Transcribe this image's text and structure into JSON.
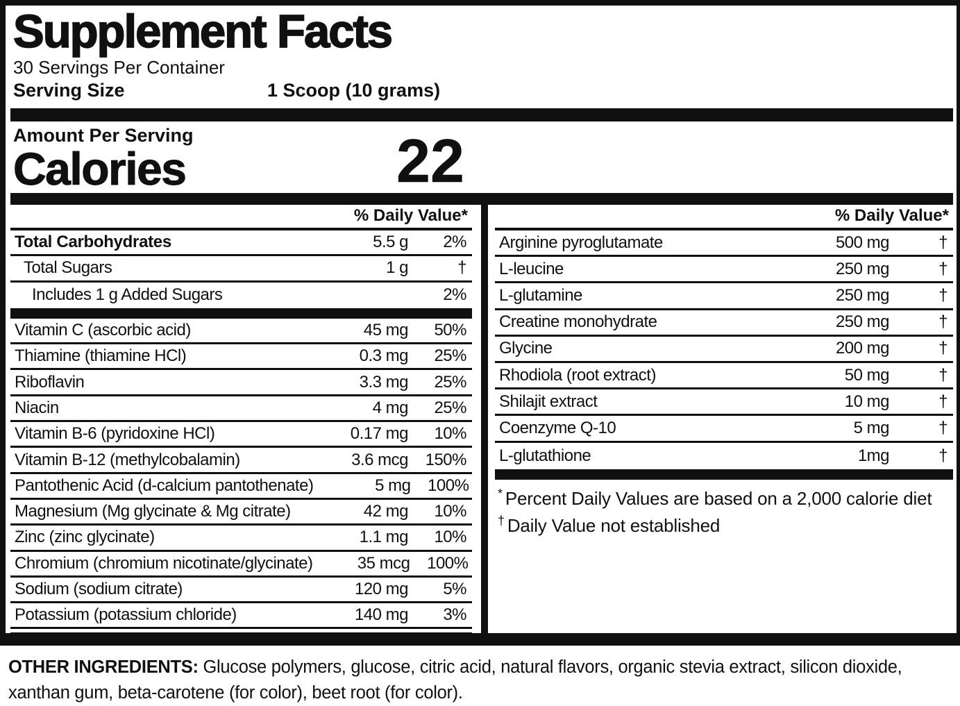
{
  "header": {
    "title": "Supplement Facts",
    "servings_per_container": "30 Servings Per Container",
    "serving_size_label": "Serving Size",
    "serving_size_value": "1 Scoop (10 grams)",
    "amount_per_serving": "Amount Per Serving",
    "calories_label": "Calories",
    "calories_value": "22"
  },
  "left_column": {
    "dv_header": "% Daily Value*",
    "rows": [
      {
        "label": "Total Carbohydrates",
        "amount": "5.5 g",
        "dv": "2%",
        "bold": true
      },
      {
        "label": "Total Sugars",
        "amount": "1 g",
        "dv": "†",
        "indent": 1
      },
      {
        "label": "Includes 1 g Added Sugars",
        "amount": "",
        "dv": "2%",
        "indent": 2,
        "bar_after": true
      },
      {
        "label": "Vitamin C (ascorbic acid)",
        "amount": "45 mg",
        "dv": "50%"
      },
      {
        "label": "Thiamine (thiamine HCl)",
        "amount": "0.3 mg",
        "dv": "25%"
      },
      {
        "label": "Riboflavin",
        "amount": "3.3 mg",
        "dv": "25%"
      },
      {
        "label": "Niacin",
        "amount": "4 mg",
        "dv": "25%"
      },
      {
        "label": "Vitamin B-6 (pyridoxine HCl)",
        "amount": "0.17 mg",
        "dv": "10%"
      },
      {
        "label": "Vitamin B-12 (methylcobalamin)",
        "amount": "3.6 mcg",
        "dv": "150%"
      },
      {
        "label": "Pantothenic Acid (d-calcium pantothenate)",
        "amount": "5 mg",
        "dv": "100%"
      },
      {
        "label": "Magnesium (Mg glycinate & Mg citrate)",
        "amount": "42 mg",
        "dv": "10%"
      },
      {
        "label": "Zinc (zinc glycinate)",
        "amount": "1.1 mg",
        "dv": "10%"
      },
      {
        "label": "Chromium (chromium nicotinate/glycinate)",
        "amount": "35 mcg",
        "dv": "100%"
      },
      {
        "label": "Sodium (sodium citrate)",
        "amount": "120 mg",
        "dv": "5%"
      },
      {
        "label": "Potassium (potassium chloride)",
        "amount": "140 mg",
        "dv": "3%"
      }
    ]
  },
  "right_column": {
    "dv_header": "% Daily Value*",
    "rows": [
      {
        "label": "Arginine pyroglutamate",
        "amount": "500 mg",
        "dv": "†"
      },
      {
        "label": "L-leucine",
        "amount": "250 mg",
        "dv": "†"
      },
      {
        "label": "L-glutamine",
        "amount": "250 mg",
        "dv": "†"
      },
      {
        "label": "Creatine monohydrate",
        "amount": "250 mg",
        "dv": "†"
      },
      {
        "label": "Glycine",
        "amount": "200 mg",
        "dv": "†"
      },
      {
        "label": "Rhodiola (root extract)",
        "amount": "50 mg",
        "dv": "†"
      },
      {
        "label": "Shilajit extract",
        "amount": "10 mg",
        "dv": "†"
      },
      {
        "label": "Coenzyme Q-10",
        "amount": "5 mg",
        "dv": "†"
      },
      {
        "label": "L-glutathione",
        "amount": "1mg",
        "dv": "†",
        "bar_after": true
      }
    ],
    "footnotes": [
      {
        "symbol": "*",
        "text": "Percent Daily Values are based on a 2,000 calorie diet"
      },
      {
        "symbol": "†",
        "text": "Daily Value not established"
      }
    ]
  },
  "other_ingredients": {
    "label": "OTHER INGREDIENTS:",
    "text": " Glucose polymers, glucose, citric acid, natural flavors, organic stevia extract, silicon dioxide, xanthan gum, beta-carotene (for color), beet root (for color)."
  },
  "colors": {
    "ink": "#101010",
    "background": "#ffffff"
  }
}
